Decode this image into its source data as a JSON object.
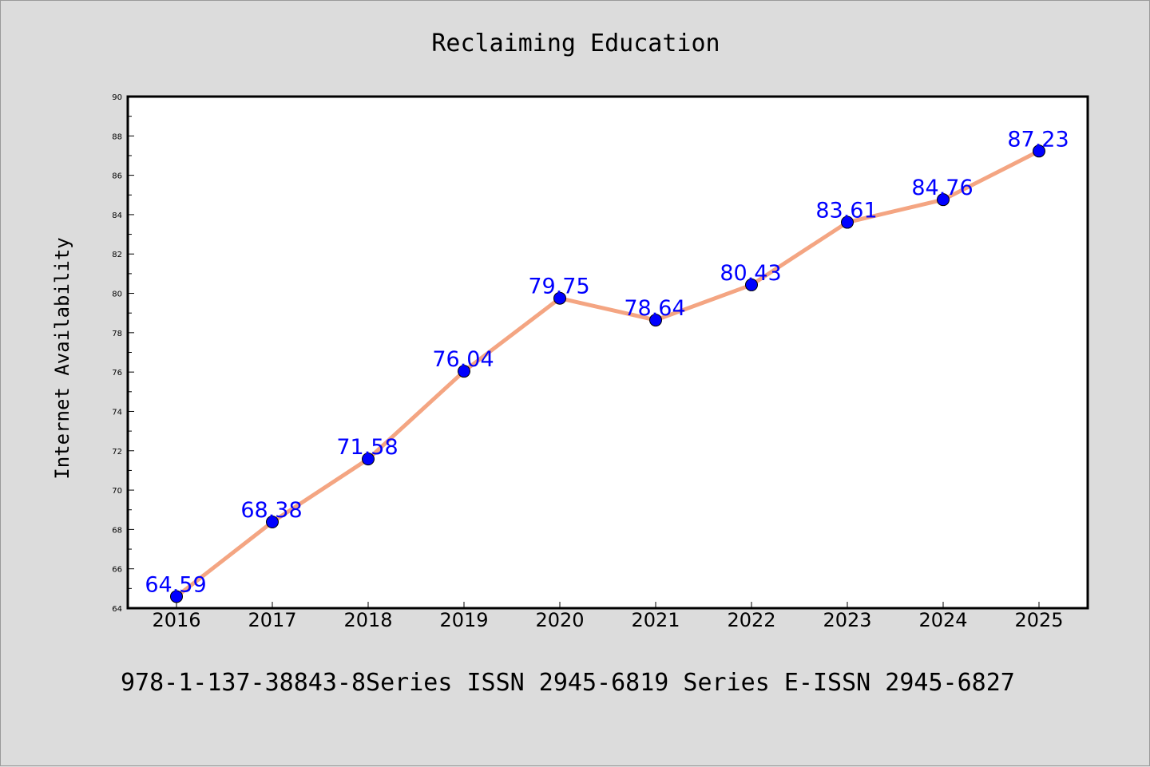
{
  "chart_data": {
    "type": "line",
    "title": "Reclaiming Education",
    "xlabel": "",
    "ylabel": "Internet Availability",
    "x": [
      "2016",
      "2017",
      "2018",
      "2019",
      "2020",
      "2021",
      "2022",
      "2023",
      "2024",
      "2025"
    ],
    "series": [
      {
        "values": [
          64.59,
          68.38,
          71.58,
          76.04,
          79.75,
          78.64,
          80.43,
          83.61,
          84.76,
          87.23
        ]
      }
    ],
    "data_labels": [
      "64.59",
      "68.38",
      "71.58",
      "76.04",
      "79.75",
      "78.64",
      "80.43",
      "83.61",
      "84.76",
      "87.23"
    ],
    "ylim": [
      64,
      90
    ],
    "y_ticks": [
      "64",
      "66",
      "68",
      "70",
      "72",
      "74",
      "76",
      "78",
      "80",
      "82",
      "84",
      "86",
      "88",
      "90"
    ],
    "grid": false,
    "colors": {
      "line": "#f4a582",
      "marker": "#0000ff",
      "labels": "#0000ff",
      "background": "#dcdcdc",
      "plot_bg": "#ffffff"
    }
  },
  "footer_text": "978-1-137-38843-8Series ISSN 2945-6819 Series E-ISSN 2945-6827"
}
